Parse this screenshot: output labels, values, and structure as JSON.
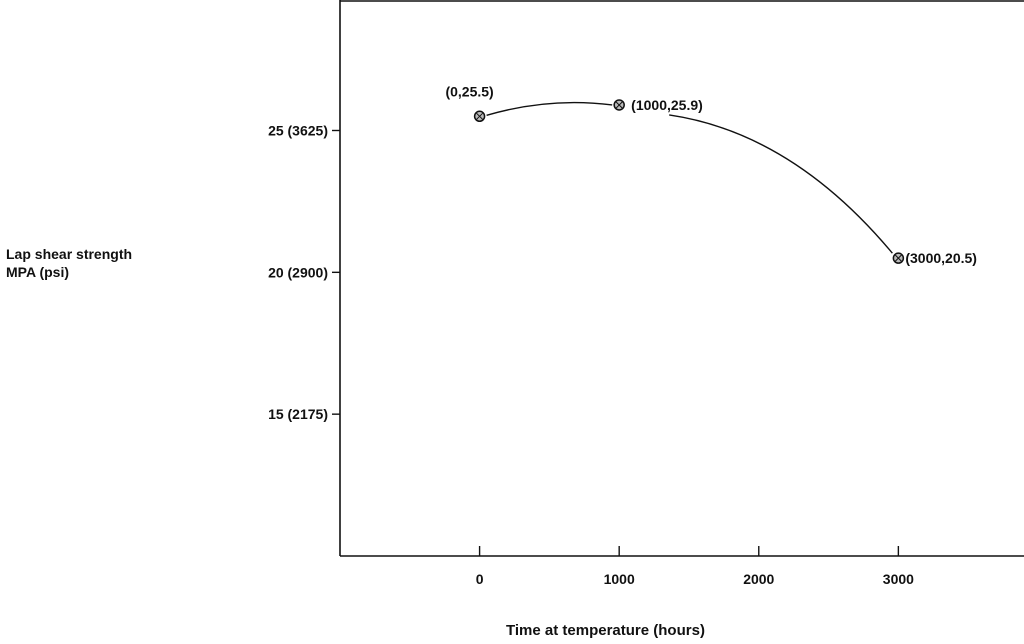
{
  "chart_data": {
    "type": "line",
    "title": "",
    "xlabel": "Time at temperature (hours)",
    "ylabel_lines": [
      "Lap shear strength",
      "MPA (psi)"
    ],
    "xlim": [
      -1000,
      3900
    ],
    "ylim": [
      10,
      29.6
    ],
    "x_ticks": [
      0,
      1000,
      2000,
      3000
    ],
    "x_tick_labels": [
      "0",
      "1000",
      "2000",
      "3000"
    ],
    "y_ticks": [
      15,
      20,
      25
    ],
    "y_tick_labels": [
      "15 (2175)",
      "20 (2900)",
      "25 (3625)"
    ],
    "grid": false,
    "series": [
      {
        "x": [
          0,
          1000,
          3000
        ],
        "y": [
          25.5,
          25.9,
          20.5
        ],
        "point_labels": [
          "(0,25.5)",
          "(1000,25.9)",
          "(3000,20.5)"
        ]
      }
    ],
    "colors": {
      "ink": "#111111",
      "marker_fill": "#bbbbbb"
    }
  }
}
